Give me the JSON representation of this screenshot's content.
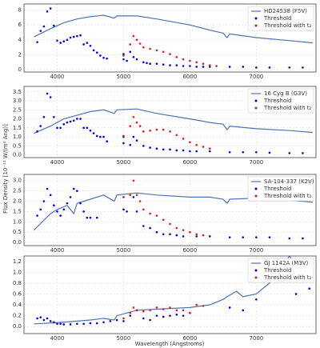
{
  "ylabel": "Flux Density [10⁻¹¹ W/(m² Ang)]",
  "xlabel": "Wavelength (Angstroms)",
  "chart_data": [
    {
      "type": "line",
      "xlim": [
        3500,
        7900
      ],
      "xticks": [
        4000,
        5000,
        6000,
        7000
      ],
      "ylim": [
        -0.3,
        8.8
      ],
      "yticks": [
        0,
        2,
        4,
        6,
        8
      ],
      "grid": true,
      "legend": "upper right",
      "series": [
        {
          "name": "HD24538 (F5V)",
          "mode": "line",
          "color": "#4c72b0",
          "x": [
            3650,
            3900,
            4100,
            4300,
            4500,
            4700,
            4860,
            4900,
            5200,
            5500,
            6000,
            6300,
            6500,
            6560,
            6600,
            7000,
            7500,
            7850
          ],
          "values": [
            4.4,
            5.5,
            6.3,
            6.8,
            7.1,
            7.3,
            6.9,
            7.2,
            7.2,
            6.8,
            6.0,
            5.3,
            4.9,
            4.3,
            4.8,
            4.3,
            3.9,
            3.6
          ]
        },
        {
          "name": "Threshold",
          "mode": "markers",
          "color": "#0000ff",
          "x": [
            3700,
            3750,
            3800,
            3850,
            3900,
            3950,
            4000,
            4050,
            4100,
            4150,
            4200,
            4250,
            4300,
            4350,
            4400,
            4450,
            4500,
            4550,
            4600,
            4650,
            4700,
            4750,
            5000,
            5000,
            5050,
            5100,
            5150,
            5200,
            5300,
            5350,
            5400,
            5500,
            5600,
            5700,
            5800,
            5900,
            6000,
            6100,
            6200,
            6300,
            6600,
            6800,
            7000,
            7200,
            7500,
            7700
          ],
          "values": [
            3.7,
            5.2,
            5.8,
            7.8,
            8.2,
            5.9,
            3.9,
            3.6,
            3.8,
            4.0,
            4.3,
            4.4,
            4.5,
            4.6,
            3.4,
            3.6,
            3.2,
            2.6,
            2.3,
            1.9,
            1.6,
            1.5,
            2.1,
            1.4,
            1.2,
            2.4,
            1.7,
            1.4,
            1.0,
            0.9,
            0.8,
            0.8,
            0.7,
            0.6,
            0.6,
            0.5,
            0.5,
            0.4,
            0.4,
            0.4,
            0.4,
            0.4,
            0.3,
            0.3,
            0.3,
            0.3
          ]
        },
        {
          "name": "Threshold with t₂",
          "mode": "markers",
          "color": "#e41a1c",
          "x": [
            5000,
            5100,
            5150,
            5200,
            5250,
            5300,
            5400,
            5500,
            5600,
            5700,
            5800,
            5900,
            6000,
            6100,
            6200,
            6300,
            6400
          ],
          "values": [
            1.9,
            3.4,
            4.5,
            4.0,
            3.5,
            3.0,
            2.8,
            2.6,
            2.4,
            2.1,
            1.7,
            1.4,
            1.2,
            1.0,
            0.8,
            0.6,
            0.5
          ]
        }
      ]
    },
    {
      "type": "line",
      "xlim": [
        3500,
        7900
      ],
      "xticks": [
        4000,
        5000,
        6000,
        7000
      ],
      "ylim": [
        -0.15,
        3.8
      ],
      "yticks": [
        {
          "value": 0,
          "label": "0.0"
        },
        0.5,
        {
          "value": 1,
          "label": "1.0"
        },
        1.5,
        {
          "value": 2,
          "label": "2.0"
        },
        2.5,
        {
          "value": 3,
          "label": "3.0"
        },
        3.5
      ],
      "grid": true,
      "legend": "upper right",
      "series": [
        {
          "name": "16 Cyg B (G3V)",
          "mode": "line",
          "color": "#4c72b0",
          "x": [
            3650,
            3900,
            4100,
            4300,
            4500,
            4700,
            4860,
            4900,
            5200,
            5500,
            6000,
            6300,
            6500,
            6560,
            6600,
            7000,
            7500,
            7850
          ],
          "values": [
            1.2,
            1.6,
            2.0,
            2.2,
            2.4,
            2.5,
            2.3,
            2.5,
            2.55,
            2.3,
            2.0,
            1.8,
            1.7,
            1.4,
            1.6,
            1.45,
            1.35,
            1.25
          ]
        },
        {
          "name": "Threshold",
          "mode": "markers",
          "color": "#0000ff",
          "x": [
            3700,
            3750,
            3800,
            3850,
            3900,
            3950,
            4000,
            4050,
            4100,
            4150,
            4200,
            4250,
            4300,
            4350,
            4400,
            4450,
            4500,
            4550,
            4600,
            4650,
            4700,
            4750,
            5000,
            5000,
            5100,
            5150,
            5200,
            5300,
            5400,
            5500,
            5600,
            5700,
            5800,
            5900,
            6000,
            6100,
            6300,
            6600,
            6800,
            7000,
            7200,
            7500,
            7700
          ],
          "values": [
            1.3,
            1.6,
            2.1,
            3.4,
            3.2,
            2.1,
            1.5,
            1.5,
            1.7,
            1.8,
            1.85,
            1.9,
            2.0,
            2.0,
            1.5,
            1.5,
            1.35,
            1.2,
            1.05,
            1.0,
            1.0,
            0.75,
            1.0,
            0.65,
            0.55,
            1.0,
            0.8,
            0.5,
            0.4,
            0.35,
            0.3,
            0.3,
            0.25,
            0.25,
            0.2,
            0.2,
            0.2,
            0.15,
            0.15,
            0.15,
            0.12,
            0.1,
            0.1
          ]
        },
        {
          "name": "Threshold with t₂",
          "mode": "markers",
          "color": "#e41a1c",
          "x": [
            5000,
            5100,
            5150,
            5200,
            5250,
            5300,
            5400,
            5500,
            5600,
            5700,
            5800,
            5900,
            6000,
            6100,
            6200,
            6300
          ],
          "values": [
            1.05,
            1.6,
            2.1,
            1.8,
            1.6,
            1.3,
            1.35,
            1.4,
            1.4,
            1.3,
            1.1,
            0.9,
            0.7,
            0.55,
            0.45,
            0.35
          ]
        }
      ]
    },
    {
      "type": "line",
      "xlim": [
        3500,
        7900
      ],
      "xticks": [
        4000,
        5000,
        6000,
        7000
      ],
      "ylim": [
        -0.15,
        3.3
      ],
      "yticks": [
        {
          "value": 0,
          "label": "0.0"
        },
        0.5,
        {
          "value": 1,
          "label": "1.0"
        },
        1.5,
        {
          "value": 2,
          "label": "2.0"
        },
        2.5,
        {
          "value": 3,
          "label": "3.0"
        }
      ],
      "grid": true,
      "legend": "upper right",
      "series": [
        {
          "name": "SA-104-337 (K2V)",
          "mode": "line",
          "color": "#4c72b0",
          "x": [
            3650,
            3900,
            4000,
            4150,
            4250,
            4300,
            4500,
            4700,
            4860,
            4900,
            5200,
            5500,
            6000,
            6300,
            6500,
            6560,
            6600,
            7000,
            7500,
            7850
          ],
          "values": [
            0.6,
            1.4,
            1.6,
            1.8,
            1.4,
            1.9,
            2.1,
            2.3,
            2.0,
            2.3,
            2.4,
            2.3,
            2.2,
            2.2,
            2.1,
            1.9,
            2.1,
            2.15,
            2.05,
            1.95
          ]
        },
        {
          "name": "Threshold",
          "mode": "markers",
          "color": "#0000ff",
          "x": [
            3700,
            3750,
            3800,
            3850,
            3900,
            3950,
            4000,
            4050,
            4100,
            4150,
            4200,
            4250,
            4300,
            4350,
            4400,
            4450,
            4500,
            4600,
            5000,
            5000,
            5050,
            5150,
            5200,
            5300,
            5400,
            5500,
            5600,
            5700,
            5800,
            5900,
            6100,
            6300,
            6600,
            6800,
            7000,
            7200,
            7500,
            7700
          ],
          "values": [
            1.3,
            1.6,
            2.0,
            2.6,
            2.3,
            1.8,
            1.5,
            1.3,
            1.6,
            1.9,
            2.2,
            2.6,
            2.5,
            1.9,
            1.5,
            1.2,
            1.2,
            1.2,
            2.2,
            1.6,
            1.5,
            2.2,
            1.5,
            0.8,
            0.7,
            0.5,
            0.4,
            0.4,
            0.35,
            0.3,
            0.3,
            0.3,
            0.25,
            0.25,
            0.25,
            0.25,
            0.2,
            0.2
          ]
        },
        {
          "name": "Threshold with t₂",
          "mode": "markers",
          "color": "#e41a1c",
          "x": [
            5000,
            5100,
            5150,
            5200,
            5250,
            5300,
            5400,
            5500,
            5600,
            5700,
            5800,
            5900,
            6000,
            6100,
            6200
          ],
          "values": [
            2.2,
            2.3,
            3.0,
            2.3,
            2.0,
            1.6,
            1.4,
            1.3,
            1.1,
            0.9,
            0.7,
            0.6,
            0.5,
            0.4,
            0.35
          ]
        }
      ]
    },
    {
      "type": "line",
      "xlim": [
        3500,
        7900
      ],
      "xticks": [
        4000,
        5000,
        6000,
        7000
      ],
      "ylim": [
        -0.13,
        1.3
      ],
      "yticks": [
        {
          "value": 0,
          "label": "0.0"
        },
        0.2,
        0.4,
        0.6,
        0.8,
        {
          "value": 1,
          "label": "1.0"
        },
        1.2
      ],
      "grid": true,
      "legend": "upper right",
      "series": [
        {
          "name": "GJ 1142A (M3V)",
          "mode": "line",
          "color": "#4c72b0",
          "x": [
            3650,
            4000,
            4300,
            4500,
            4700,
            4860,
            4900,
            5200,
            5500,
            6000,
            6300,
            6500,
            6560,
            6700,
            6800,
            7000,
            7200,
            7400,
            7500,
            7700,
            7850
          ],
          "values": [
            0.05,
            0.07,
            0.1,
            0.12,
            0.15,
            0.12,
            0.2,
            0.3,
            0.32,
            0.35,
            0.4,
            0.5,
            0.55,
            0.65,
            0.55,
            0.6,
            0.8,
            1.1,
            1.3,
            0.95,
            1.15
          ]
        },
        {
          "name": "Threshold",
          "mode": "markers",
          "color": "#0000ff",
          "x": [
            3700,
            3750,
            3800,
            3850,
            3900,
            3950,
            4000,
            4050,
            4100,
            4200,
            4300,
            4400,
            4500,
            4600,
            4700,
            4800,
            4900,
            5000,
            5100,
            5200,
            5300,
            5400,
            5500,
            5600,
            5700,
            5800,
            5900,
            6000,
            6600,
            6800,
            7000,
            7200,
            7400,
            7600,
            7800
          ],
          "values": [
            0.15,
            0.17,
            0.12,
            0.15,
            0.1,
            0.08,
            0.05,
            0.05,
            0.04,
            0.04,
            0.05,
            0.05,
            0.06,
            0.06,
            0.08,
            0.1,
            0.12,
            0.1,
            0.2,
            0.3,
            0.15,
            0.12,
            0.2,
            0.18,
            0.2,
            0.22,
            0.2,
            0.25,
            0.35,
            0.3,
            0.5,
            0.85,
            0.9,
            0.6,
            0.7
          ]
        },
        {
          "name": "Threshold with t₂",
          "mode": "markers",
          "color": "#e41a1c",
          "x": [
            5000,
            5100,
            5150,
            5200,
            5300,
            5400,
            5500,
            5600,
            5700,
            5800,
            5900,
            6000,
            6100,
            6200
          ],
          "values": [
            0.15,
            0.25,
            0.35,
            0.3,
            0.28,
            0.3,
            0.35,
            0.32,
            0.35,
            0.3,
            0.3,
            0.25,
            0.4,
            0.38
          ]
        }
      ]
    }
  ]
}
